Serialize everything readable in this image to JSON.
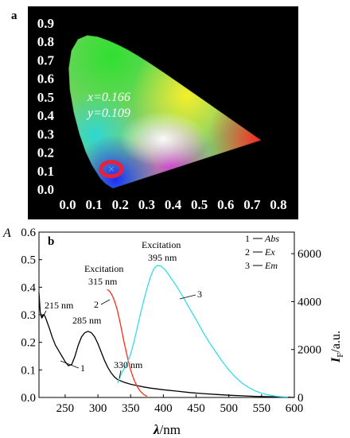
{
  "panel_a": {
    "label": "a",
    "cie": {
      "x_text": "x=0.166",
      "y_text": "y=0.109",
      "x": 0.166,
      "y": 0.109,
      "marker": "×"
    },
    "x_ticks": [
      "0.0",
      "0.1",
      "0.2",
      "0.3",
      "0.4",
      "0.5",
      "0.6",
      "0.7",
      "0.8"
    ],
    "y_ticks": [
      "0.0",
      "0.1",
      "0.2",
      "0.3",
      "0.4",
      "0.5",
      "0.6",
      "0.7",
      "0.8",
      "0.9"
    ]
  },
  "panel_b": {
    "label": "b",
    "ylabel_left": "A",
    "ylabel_right_main": "I",
    "ylabel_right_sub": "F",
    "ylabel_right_unit": "/a.u.",
    "xlabel_lambda": "λ",
    "xlabel_unit": "/nm",
    "legend": [
      {
        "num": "1",
        "name": "Abs"
      },
      {
        "num": "2",
        "name": "Ex"
      },
      {
        "num": "3",
        "name": "Em"
      }
    ],
    "annotations": {
      "p215": "215 nm",
      "p285": "285 nm",
      "p330": "330 nm",
      "ex2_title": "Excitation",
      "ex2_value": "315 nm",
      "ex3_title": "Excitation",
      "ex3_value": "395 nm",
      "curve1": "1",
      "curve2": "2",
      "curve3": "3"
    }
  },
  "colors": {
    "abs": "#000000",
    "ex": "#ff2a1a",
    "em": "#33dde8",
    "ring": "#e8203a",
    "panel_bg": "#000000"
  },
  "chart_data": [
    {
      "type": "scatter",
      "title": "",
      "xlim": [
        0.0,
        0.8
      ],
      "ylim": [
        0.0,
        0.9
      ],
      "x": [
        0.166
      ],
      "y": [
        0.109
      ]
    },
    {
      "type": "line",
      "xlabel": "λ/nm",
      "ylabel": "A",
      "ylabel_right": "IF/a.u.",
      "xlim": [
        210,
        600
      ],
      "ylim": [
        0,
        0.6
      ],
      "ylim_right": [
        0,
        6900
      ],
      "x_ticks": [
        "250",
        "300",
        "350",
        "400",
        "450",
        "500",
        "550",
        "600"
      ],
      "y_ticks": [
        "0.0",
        "0.1",
        "0.2",
        "0.3",
        "0.4",
        "0.5",
        "0.6"
      ],
      "y_ticks_right": [
        "0",
        "2000",
        "4000",
        "6000"
      ],
      "series": [
        {
          "name": "Abs",
          "axis": "left",
          "x": [
            210,
            212,
            214,
            216,
            218,
            220,
            223,
            226,
            230,
            235,
            240,
            245,
            250,
            255,
            260,
            265,
            270,
            275,
            280,
            285,
            290,
            295,
            300,
            305,
            310,
            315,
            320,
            325,
            330,
            335,
            340,
            350,
            360,
            370,
            380,
            400,
            420,
            440,
            460,
            480,
            500,
            520,
            540,
            560,
            580,
            590,
            600
          ],
          "y": [
            0.38,
            0.31,
            0.29,
            0.3,
            0.3,
            0.29,
            0.27,
            0.25,
            0.22,
            0.19,
            0.17,
            0.15,
            0.13,
            0.115,
            0.12,
            0.15,
            0.19,
            0.22,
            0.235,
            0.24,
            0.235,
            0.22,
            0.195,
            0.165,
            0.135,
            0.11,
            0.09,
            0.075,
            0.065,
            0.06,
            0.055,
            0.048,
            0.043,
            0.038,
            0.034,
            0.028,
            0.023,
            0.018,
            0.014,
            0.011,
            0.008,
            0.006,
            0.004,
            0.003,
            0.002,
            0.001,
            0.0
          ]
        },
        {
          "name": "Ex",
          "axis": "right",
          "x": [
            314,
            316,
            318,
            320,
            322,
            325,
            328,
            330,
            333,
            336,
            340,
            345,
            350,
            355,
            360,
            365,
            370,
            375
          ],
          "y": [
            4500,
            4480,
            4430,
            4350,
            4250,
            4050,
            3800,
            3600,
            3250,
            2850,
            2300,
            1700,
            1150,
            750,
            450,
            250,
            120,
            50
          ]
        },
        {
          "name": "Em",
          "axis": "right",
          "x": [
            330,
            333,
            336,
            340,
            345,
            350,
            355,
            360,
            365,
            370,
            375,
            380,
            385,
            390,
            395,
            400,
            405,
            410,
            420,
            430,
            440,
            450,
            460,
            470,
            480,
            490,
            500,
            510,
            520,
            530,
            540,
            550,
            560,
            570,
            580,
            590
          ],
          "y": [
            600,
            800,
            1000,
            1200,
            1450,
            1800,
            2300,
            2900,
            3500,
            4050,
            4550,
            5000,
            5350,
            5500,
            5500,
            5400,
            5250,
            5050,
            4650,
            4200,
            3720,
            3250,
            2750,
            2300,
            1900,
            1500,
            1150,
            850,
            600,
            420,
            280,
            180,
            110,
            60,
            30,
            15
          ]
        }
      ]
    }
  ]
}
